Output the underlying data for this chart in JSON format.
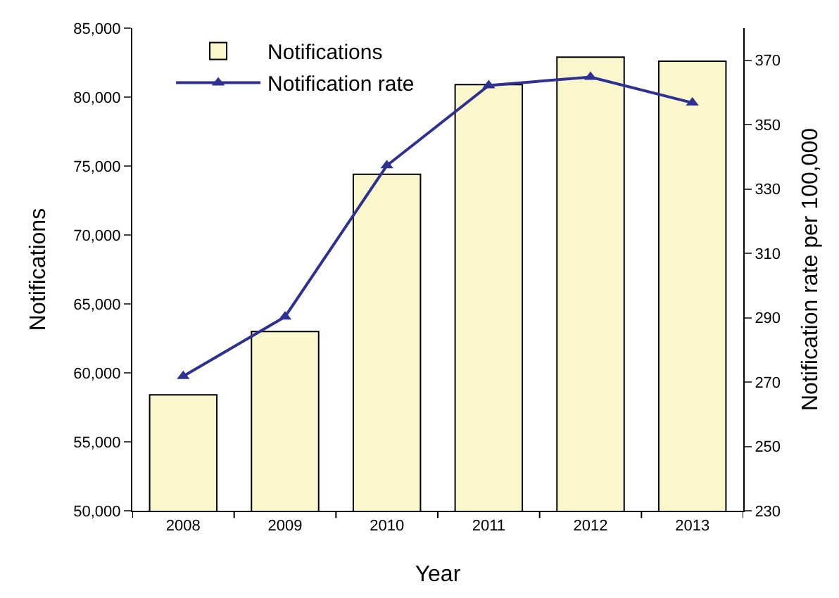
{
  "chart_data": {
    "type": "bar",
    "xlabel": "Year",
    "ylabel": "Notifications",
    "y2label": "Notification rate per 100,000",
    "categories": [
      "2008",
      "2009",
      "2010",
      "2011",
      "2012",
      "2013"
    ],
    "series": [
      {
        "name": "Notifications",
        "color": "#faf7cd",
        "values": [
          58400,
          63000,
          74400,
          80900,
          82900,
          82600
        ]
      },
      {
        "name": "Notification rate",
        "type": "line",
        "axis": "y2",
        "color": "#2e3192",
        "marker": "triangle",
        "values": [
          271.8,
          290.3,
          337.3,
          362.2,
          364.8,
          356.8
        ]
      }
    ],
    "ylim": [
      50000,
      85000
    ],
    "yticks": [
      {
        "value": 50000,
        "label": "50,000"
      },
      {
        "value": 55000,
        "label": "55,000"
      },
      {
        "value": 60000,
        "label": "60,000"
      },
      {
        "value": 65000,
        "label": "65,000"
      },
      {
        "value": 70000,
        "label": "70,000"
      },
      {
        "value": 75000,
        "label": "75,000"
      },
      {
        "value": 80000,
        "label": "80,000"
      },
      {
        "value": 85000,
        "label": "85,000"
      }
    ],
    "y2lim": [
      230,
      380
    ],
    "y2ticks": [
      230,
      250,
      270,
      290,
      310,
      330,
      350,
      370
    ],
    "legend": "top left"
  }
}
